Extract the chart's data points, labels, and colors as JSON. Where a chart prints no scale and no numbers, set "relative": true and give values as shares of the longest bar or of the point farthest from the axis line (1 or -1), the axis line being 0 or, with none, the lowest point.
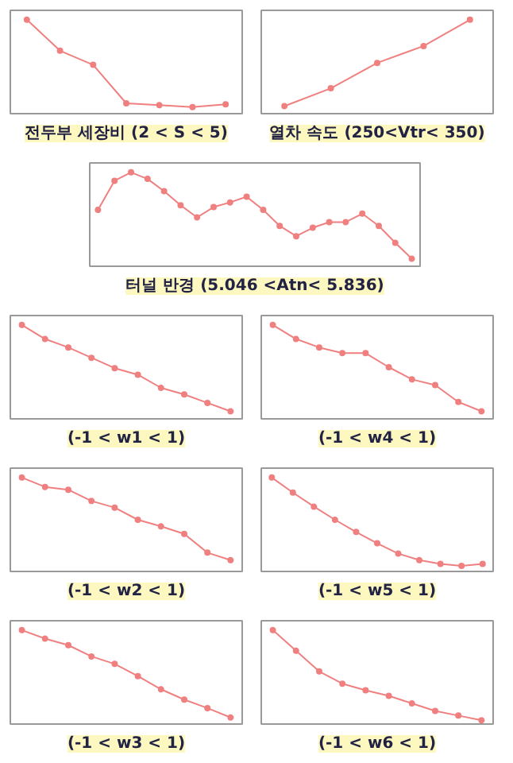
{
  "chart_data": [
    {
      "type": "line",
      "title": "전두부 세장비 (2 < S < 5)",
      "relative": true,
      "marker": "circle",
      "categories": [
        null,
        null,
        null,
        null,
        null,
        null,
        null
      ],
      "series": [
        {
          "color": "#f08080",
          "values": [
            1,
            0.67,
            0.52,
            0.11,
            0.09,
            0.07,
            0.1
          ]
        }
      ]
    },
    {
      "type": "line",
      "title": "열차 속도 (250<Vtr< 350)",
      "relative": true,
      "marker": "circle",
      "categories": [
        null,
        null,
        null,
        null,
        null
      ],
      "series": [
        {
          "color": "#f08080",
          "values": [
            0.08,
            0.27,
            0.54,
            0.72,
            1
          ]
        }
      ]
    },
    {
      "type": "line",
      "title": "터널 반경 (5.046 <Atn< 5.836)",
      "relative": true,
      "marker": "circle",
      "categories": [
        null,
        null,
        null,
        null,
        null,
        null,
        null,
        null,
        null,
        null,
        null,
        null,
        null,
        null,
        null,
        null,
        null,
        null,
        null,
        null
      ],
      "series": [
        {
          "color": "#f08080",
          "values": [
            0.6,
            0.91,
            1,
            0.93,
            0.8,
            0.65,
            0.52,
            0.63,
            0.68,
            0.74,
            0.6,
            0.43,
            0.32,
            0.41,
            0.47,
            0.47,
            0.56,
            0.43,
            0.25,
            0.08
          ]
        }
      ]
    },
    {
      "type": "line",
      "title": "(-1 < w1 < 1)",
      "relative": true,
      "marker": "circle",
      "categories": [
        null,
        null,
        null,
        null,
        null,
        null,
        null,
        null,
        null,
        null
      ],
      "series": [
        {
          "color": "#f08080",
          "values": [
            1,
            0.85,
            0.76,
            0.65,
            0.54,
            0.47,
            0.33,
            0.26,
            0.17,
            0.08
          ]
        }
      ]
    },
    {
      "type": "line",
      "title": "(-1 < w4 < 1)",
      "relative": true,
      "marker": "circle",
      "categories": [
        null,
        null,
        null,
        null,
        null,
        null,
        null,
        null,
        null,
        null
      ],
      "series": [
        {
          "color": "#f08080",
          "values": [
            1,
            0.85,
            0.76,
            0.7,
            0.7,
            0.55,
            0.42,
            0.36,
            0.18,
            0.08
          ]
        }
      ]
    },
    {
      "type": "line",
      "title": "(-1 < w2 < 1)",
      "relative": true,
      "marker": "circle",
      "categories": [
        null,
        null,
        null,
        null,
        null,
        null,
        null,
        null,
        null,
        null
      ],
      "series": [
        {
          "color": "#f08080",
          "values": [
            1,
            0.9,
            0.87,
            0.75,
            0.68,
            0.55,
            0.48,
            0.4,
            0.2,
            0.12
          ]
        }
      ]
    },
    {
      "type": "line",
      "title": "(-1 < w5 < 1)",
      "relative": true,
      "marker": "circle",
      "categories": [
        null,
        null,
        null,
        null,
        null,
        null,
        null,
        null,
        null,
        null,
        null
      ],
      "series": [
        {
          "color": "#f08080",
          "values": [
            1,
            0.84,
            0.69,
            0.55,
            0.42,
            0.3,
            0.19,
            0.12,
            0.08,
            0.06,
            0.08
          ]
        }
      ]
    },
    {
      "type": "line",
      "title": "(-1 < w3 < 1)",
      "relative": true,
      "marker": "circle",
      "categories": [
        null,
        null,
        null,
        null,
        null,
        null,
        null,
        null,
        null,
        null
      ],
      "series": [
        {
          "color": "#f08080",
          "values": [
            1,
            0.91,
            0.84,
            0.72,
            0.64,
            0.51,
            0.37,
            0.26,
            0.17,
            0.07
          ]
        }
      ]
    },
    {
      "type": "line",
      "title": "(-1 < w6 < 1)",
      "relative": true,
      "marker": "circle",
      "categories": [
        null,
        null,
        null,
        null,
        null,
        null,
        null,
        null,
        null,
        null
      ],
      "series": [
        {
          "color": "#f08080",
          "values": [
            1,
            0.78,
            0.56,
            0.43,
            0.36,
            0.3,
            0.22,
            0.14,
            0.09,
            0.04
          ]
        }
      ]
    }
  ]
}
